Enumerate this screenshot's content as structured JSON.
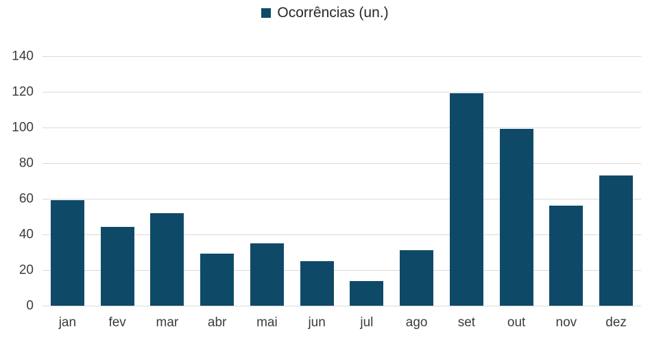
{
  "chart_data": {
    "type": "bar",
    "title": "",
    "legend_position": "top",
    "legend_entries": [
      "Ocorrências (un.)"
    ],
    "categories": [
      "jan",
      "fev",
      "mar",
      "abr",
      "mai",
      "jun",
      "jul",
      "ago",
      "set",
      "out",
      "nov",
      "dez"
    ],
    "series": [
      {
        "name": "Ocorrências (un.)",
        "values": [
          59,
          44,
          52,
          29,
          35,
          25,
          14,
          31,
          119,
          99,
          56,
          73
        ]
      }
    ],
    "xlabel": "",
    "ylabel": "",
    "ylim": [
      0,
      140
    ],
    "yticks": [
      0,
      20,
      40,
      60,
      80,
      100,
      120,
      140
    ],
    "grid": true
  },
  "legend": {
    "label": "Ocorrências (un.)"
  },
  "colors": {
    "bar": "#0e4a68",
    "gridline": "#d9d9d9",
    "axis_text": "#3b3b3b"
  }
}
